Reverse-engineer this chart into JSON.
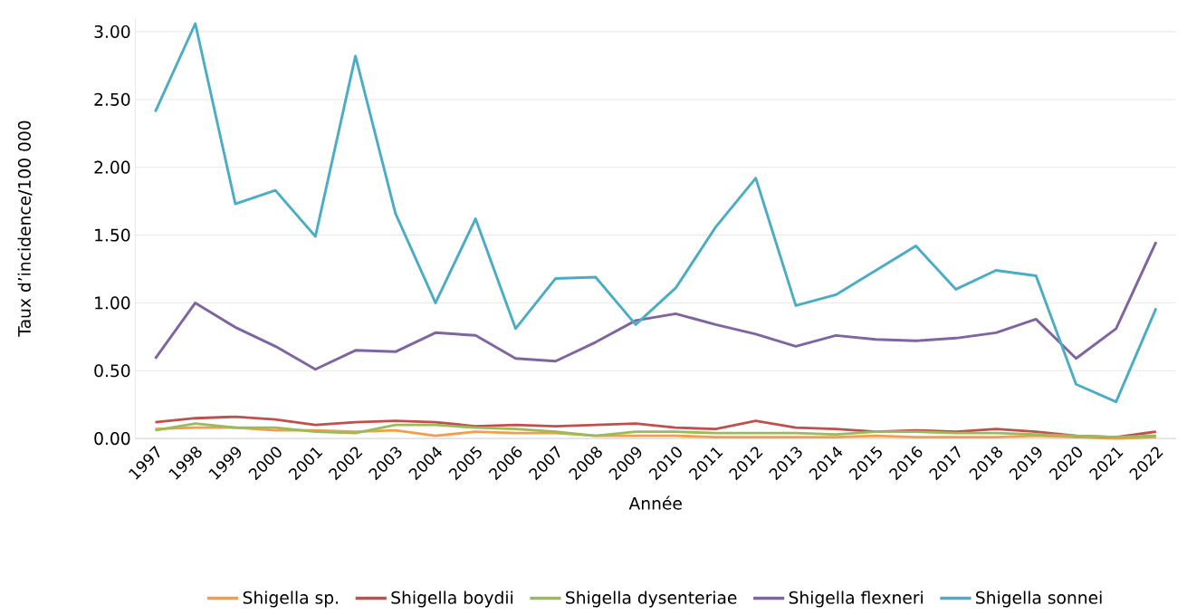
{
  "chart_data": {
    "type": "line",
    "xlabel": "Année",
    "ylabel": "Taux d’incidence/100 000",
    "categories": [
      "1997",
      "1998",
      "1999",
      "2000",
      "2001",
      "2002",
      "2003",
      "2004",
      "2005",
      "2006",
      "2007",
      "2008",
      "2009",
      "2010",
      "2011",
      "2012",
      "2013",
      "2014",
      "2015",
      "2016",
      "2017",
      "2018",
      "2019",
      "2020",
      "2021",
      "2022"
    ],
    "ylim": [
      0,
      3.1
    ],
    "yticks": [
      {
        "value": 0,
        "label": "0.00"
      },
      {
        "value": 0.5,
        "label": "0.50"
      },
      {
        "value": 1,
        "label": "1.00"
      },
      {
        "value": 1.5,
        "label": "1.50"
      },
      {
        "value": 2,
        "label": "2.00"
      },
      {
        "value": 2.5,
        "label": "2.50"
      },
      {
        "value": 3,
        "label": "3.00"
      }
    ],
    "grid": "y",
    "legend": "bottom",
    "marker": "none",
    "line_style": "solid",
    "series": [
      {
        "name": "Shigella sp.",
        "color": "#f59d4a",
        "values": [
          0.07,
          0.08,
          0.08,
          0.06,
          0.06,
          0.05,
          0.06,
          0.02,
          0.05,
          0.04,
          0.04,
          0.02,
          0.02,
          0.02,
          0.01,
          0.01,
          0.01,
          0.01,
          0.02,
          0.01,
          0.01,
          0.01,
          0.02,
          0.01,
          0.0,
          0.01
        ]
      },
      {
        "name": "Shigella boydii",
        "color": "#c0504d",
        "values": [
          0.12,
          0.15,
          0.16,
          0.14,
          0.1,
          0.12,
          0.13,
          0.12,
          0.09,
          0.1,
          0.09,
          0.1,
          0.11,
          0.08,
          0.07,
          0.13,
          0.08,
          0.07,
          0.05,
          0.06,
          0.05,
          0.07,
          0.05,
          0.02,
          0.01,
          0.05
        ]
      },
      {
        "name": "Shigella dysenteriae",
        "color": "#9bbb59",
        "values": [
          0.06,
          0.11,
          0.08,
          0.08,
          0.05,
          0.04,
          0.1,
          0.1,
          0.08,
          0.07,
          0.05,
          0.02,
          0.05,
          0.05,
          0.04,
          0.04,
          0.04,
          0.03,
          0.05,
          0.05,
          0.04,
          0.04,
          0.03,
          0.02,
          0.01,
          0.02
        ]
      },
      {
        "name": "Shigella flexneri",
        "color": "#8064a2",
        "values": [
          0.59,
          1.0,
          0.82,
          0.68,
          0.51,
          0.65,
          0.64,
          0.78,
          0.76,
          0.59,
          0.57,
          0.71,
          0.87,
          0.92,
          0.84,
          0.77,
          0.68,
          0.76,
          0.73,
          0.72,
          0.74,
          0.78,
          0.88,
          0.59,
          0.81,
          1.45
        ]
      },
      {
        "name": "Shigella sonnei",
        "color": "#4bacc6",
        "values": [
          2.41,
          3.06,
          1.73,
          1.83,
          1.49,
          2.82,
          1.66,
          1.0,
          1.62,
          0.81,
          1.18,
          1.19,
          0.84,
          1.11,
          1.56,
          1.92,
          0.98,
          1.06,
          1.24,
          1.42,
          1.1,
          1.24,
          1.2,
          0.4,
          0.27,
          0.96
        ]
      }
    ]
  }
}
